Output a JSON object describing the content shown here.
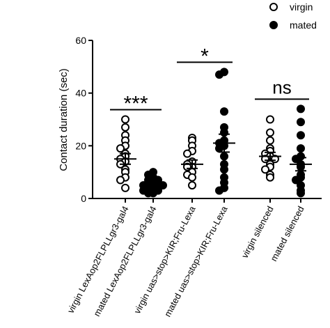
{
  "chart_data": {
    "type": "scatter",
    "y_label": "Contact duration (sec)",
    "ylim": [
      0,
      60
    ],
    "yticks": [
      0,
      20,
      40,
      60
    ],
    "categories": [
      "virgin LexAop2FLPLLgr3-gal4",
      "mated LexAop2FLPLLgr3-gal4",
      "virgin uas>stop>KIR;Fru-Lexa",
      "mated uas>stop>KIR;Fru-Lexa",
      "virgin silenced",
      "mated silenced"
    ],
    "series": [
      {
        "name": "virgin",
        "marker": "open",
        "color": "#000000",
        "values": [
          [
            30,
            27,
            24,
            22,
            20,
            19,
            17,
            16,
            15,
            14,
            13,
            11,
            10,
            8,
            7,
            4
          ],
          [
            23,
            22,
            20,
            18,
            17,
            14,
            13,
            12,
            12,
            10,
            9,
            8,
            5
          ],
          [
            30,
            25,
            22,
            19,
            18,
            17,
            16,
            15,
            15,
            13,
            12,
            11,
            9,
            8
          ]
        ],
        "means": [
          15,
          13,
          16
        ],
        "sems": [
          2,
          1.6,
          1.5
        ]
      },
      {
        "name": "mated",
        "marker": "filled",
        "color": "#000000",
        "values": [
          [
            10,
            9,
            8,
            7,
            7,
            6,
            6,
            5,
            5,
            5,
            4,
            4,
            3,
            3,
            2,
            2
          ],
          [
            48,
            47,
            33,
            27,
            25,
            22,
            21,
            20,
            19,
            16,
            13,
            11,
            8,
            6,
            4,
            3
          ],
          [
            34,
            29,
            24,
            19,
            16,
            15,
            13,
            12,
            9,
            8,
            7,
            5,
            3,
            2
          ]
        ],
        "means": [
          5.5,
          21,
          13
        ],
        "sems": [
          0.8,
          3.4,
          2.5
        ]
      }
    ],
    "annotations": [
      "***",
      "*",
      "ns"
    ]
  }
}
